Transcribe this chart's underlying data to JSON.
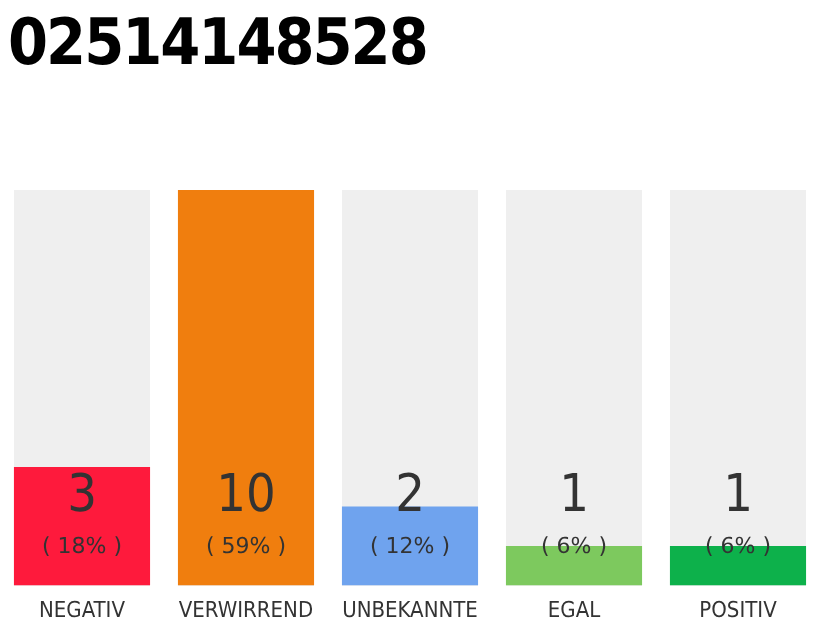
{
  "chart_data": {
    "type": "bar",
    "title": "02514148528",
    "categories": [
      "NEGATIV",
      "VERWIRREND",
      "UNBEKANNTE",
      "EGAL",
      "POSITIV"
    ],
    "values": [
      3,
      10,
      2,
      1,
      1
    ],
    "colors": [
      "#fe1a3c",
      "#f07e0e",
      "#6fa3ee",
      "#7dc95e",
      "#0db14b"
    ],
    "value_labels": [
      "3\n( 18% )",
      "10\n( 59% )",
      "2\n( 12% )",
      "1\n( 6% )",
      "1\n( 6% )"
    ],
    "tick_labels": "x",
    "grid": false,
    "legend": false
  }
}
